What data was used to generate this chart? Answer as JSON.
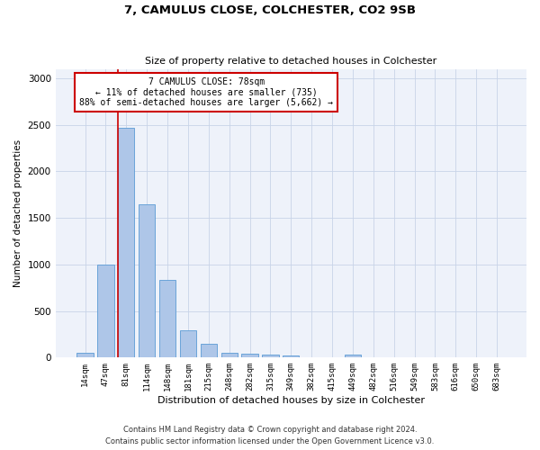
{
  "title1": "7, CAMULUS CLOSE, COLCHESTER, CO2 9SB",
  "title2": "Size of property relative to detached houses in Colchester",
  "xlabel": "Distribution of detached houses by size in Colchester",
  "ylabel": "Number of detached properties",
  "categories": [
    "14sqm",
    "47sqm",
    "81sqm",
    "114sqm",
    "148sqm",
    "181sqm",
    "215sqm",
    "248sqm",
    "282sqm",
    "315sqm",
    "349sqm",
    "382sqm",
    "415sqm",
    "449sqm",
    "482sqm",
    "516sqm",
    "549sqm",
    "583sqm",
    "616sqm",
    "650sqm",
    "683sqm"
  ],
  "values": [
    55,
    1000,
    2470,
    1650,
    830,
    290,
    145,
    50,
    40,
    30,
    20,
    0,
    0,
    30,
    0,
    0,
    0,
    0,
    0,
    0,
    0
  ],
  "bar_color": "#aec6e8",
  "bar_edge_color": "#5b9bd5",
  "property_line_bin": 2,
  "annotation_text": "7 CAMULUS CLOSE: 78sqm\n← 11% of detached houses are smaller (735)\n88% of semi-detached houses are larger (5,662) →",
  "annotation_box_color": "#ffffff",
  "annotation_box_edge_color": "#cc0000",
  "property_line_color": "#cc0000",
  "ylim": [
    0,
    3100
  ],
  "yticks": [
    0,
    500,
    1000,
    1500,
    2000,
    2500,
    3000
  ],
  "grid_color": "#c8d4e8",
  "background_color": "#eef2fa",
  "footer_line1": "Contains HM Land Registry data © Crown copyright and database right 2024.",
  "footer_line2": "Contains public sector information licensed under the Open Government Licence v3.0."
}
